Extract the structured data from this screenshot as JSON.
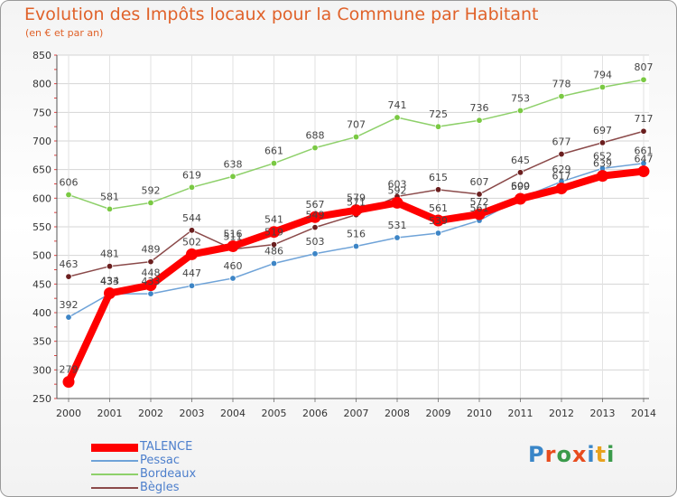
{
  "title": "Evolution des Impôts locaux pour la Commune par Habitant",
  "subtitle": "(en € et par an)",
  "logo": {
    "text": "Proxiti",
    "letter_colors": [
      "#3a86c8",
      "#e84c1e",
      "#3a9a4a",
      "#e84c1e",
      "#3a86c8",
      "#e8a21e",
      "#3a9a4a"
    ]
  },
  "chart_data": {
    "type": "line",
    "x": [
      2000,
      2001,
      2002,
      2003,
      2004,
      2005,
      2006,
      2007,
      2008,
      2009,
      2010,
      2011,
      2012,
      2013,
      2014
    ],
    "ylim": [
      250,
      850
    ],
    "yticks": [
      250,
      300,
      350,
      400,
      450,
      500,
      550,
      600,
      650,
      700,
      750,
      800,
      850
    ],
    "grid": true,
    "legend": "bottom-left",
    "series": [
      {
        "name": "Bordeaux",
        "color": "#8ed06a",
        "point_color": "#7ac943",
        "values": [
          606,
          581,
          592,
          619,
          638,
          661,
          688,
          707,
          741,
          725,
          736,
          753,
          778,
          794,
          807
        ],
        "labels": [
          "606",
          "581",
          "592",
          "619",
          "638",
          "661",
          "688",
          "707",
          "741",
          "725",
          "736",
          "753",
          "778",
          "794",
          "807"
        ]
      },
      {
        "name": "Bègles",
        "color": "#8b4a4a",
        "point_color": "#6b1f1f",
        "values": [
          463,
          481,
          489,
          544,
          511,
          519,
          549,
          571,
          603,
          615,
          607,
          645,
          677,
          697,
          717
        ],
        "labels": [
          "463",
          "481",
          "489",
          "544",
          "511",
          "519",
          "549",
          "571",
          "603",
          "615",
          "607",
          "645",
          "677",
          "697",
          "717"
        ]
      },
      {
        "name": "Pessac",
        "color": "#6fa3d8",
        "point_color": "#3d85c6",
        "values": [
          392,
          433,
          433,
          447,
          460,
          486,
          503,
          516,
          531,
          539,
          561,
          600,
          629,
          652,
          661
        ],
        "labels": [
          "392",
          "433",
          "433",
          "447",
          "460",
          "486",
          "503",
          "516",
          "531",
          "539",
          "561",
          "600",
          "629",
          "652",
          "661"
        ]
      },
      {
        "name": "TALENCE",
        "color": "#ff0000",
        "point_color": "#ff0000",
        "values": [
          279,
          434,
          448,
          502,
          516,
          541,
          567,
          579,
          592,
          561,
          572,
          599,
          617,
          639,
          647
        ],
        "labels": [
          "279",
          "434",
          "448",
          "502",
          "516",
          "541",
          "567",
          "579",
          "592",
          "561",
          "572",
          "599",
          "617",
          "639",
          "647"
        ]
      }
    ]
  },
  "legend_order": [
    "TALENCE",
    "Pessac",
    "Bordeaux",
    "Bègles"
  ]
}
